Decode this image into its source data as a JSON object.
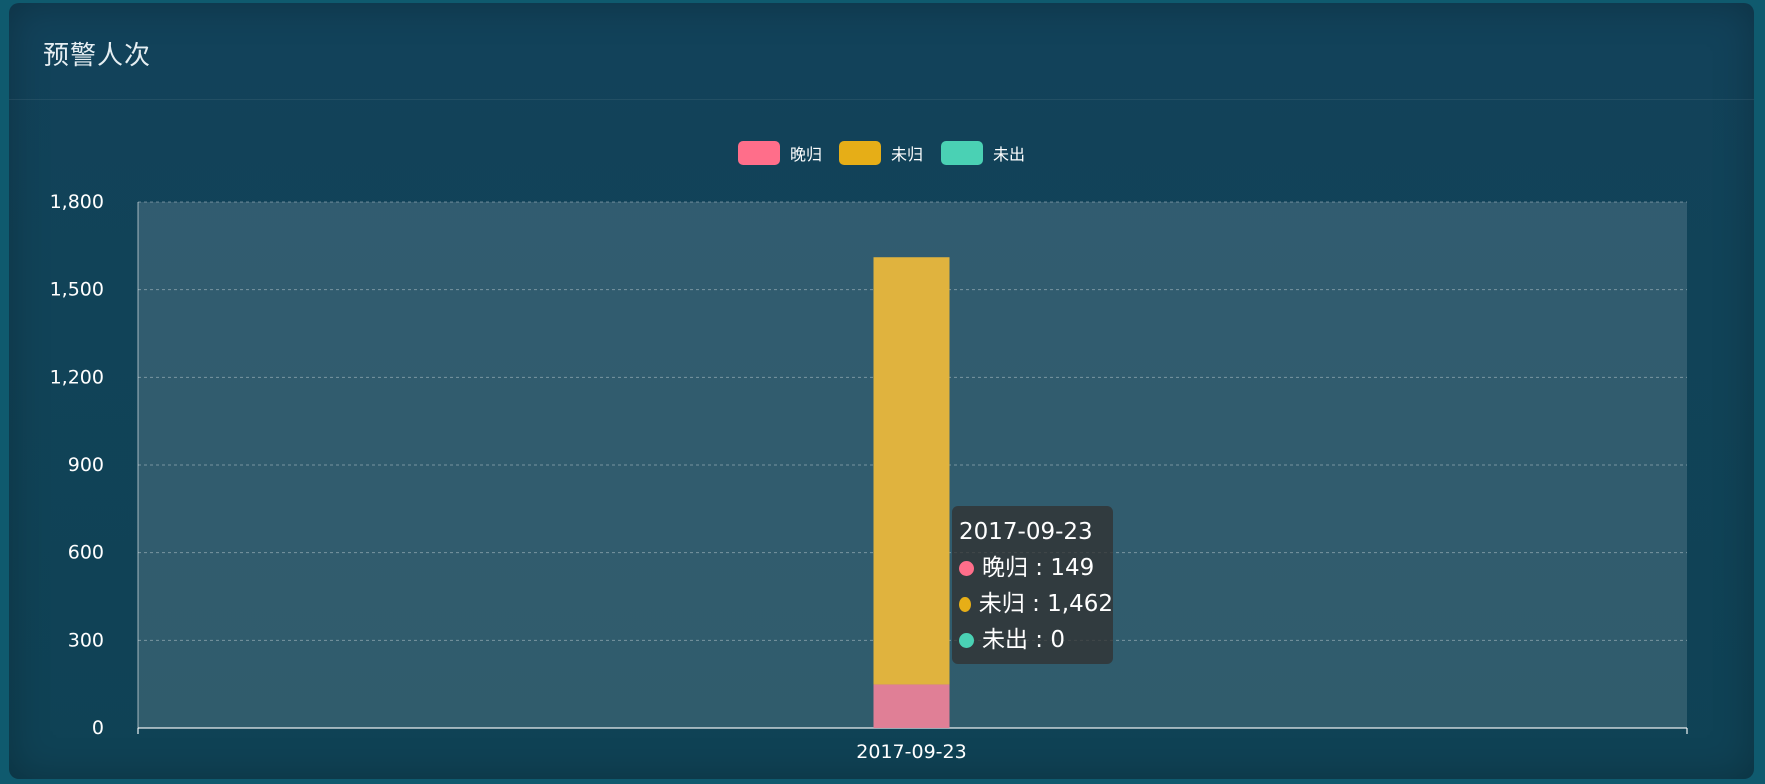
{
  "panel": {
    "title": "预警人次"
  },
  "legend": [
    {
      "label": "晚归",
      "color": "#ff6e8a"
    },
    {
      "label": "未归",
      "color": "#e6ae17"
    },
    {
      "label": "未出",
      "color": "#4ad1b4"
    }
  ],
  "tooltip": {
    "title": "2017-09-23",
    "rows": [
      {
        "label": "晚归",
        "sep": " : ",
        "value": "149",
        "color": "#ff6e8a"
      },
      {
        "label": "未归",
        "sep": " : ",
        "value": "1,462",
        "color": "#e6ae17"
      },
      {
        "label": "未出",
        "sep": " : ",
        "value": "0",
        "color": "#4ad1b4"
      }
    ]
  },
  "chart_data": {
    "type": "bar",
    "stacked": true,
    "categories": [
      "2017-09-23"
    ],
    "series": [
      {
        "name": "晚归",
        "values": [
          149
        ],
        "color": "#e07f96"
      },
      {
        "name": "未归",
        "values": [
          1462
        ],
        "color": "#e0b33e"
      },
      {
        "name": "未出",
        "values": [
          0
        ],
        "color": "#4ad1b4"
      }
    ],
    "title": "预警人次",
    "xlabel": "",
    "ylabel": "",
    "ylim": [
      0,
      1800
    ],
    "yticks": [
      "0",
      "300",
      "600",
      "900",
      "1,200",
      "1,500",
      "1,800"
    ],
    "ytick_values": [
      0,
      300,
      600,
      900,
      1200,
      1500,
      1800
    ],
    "grid": true,
    "legend_position": "top-center"
  }
}
